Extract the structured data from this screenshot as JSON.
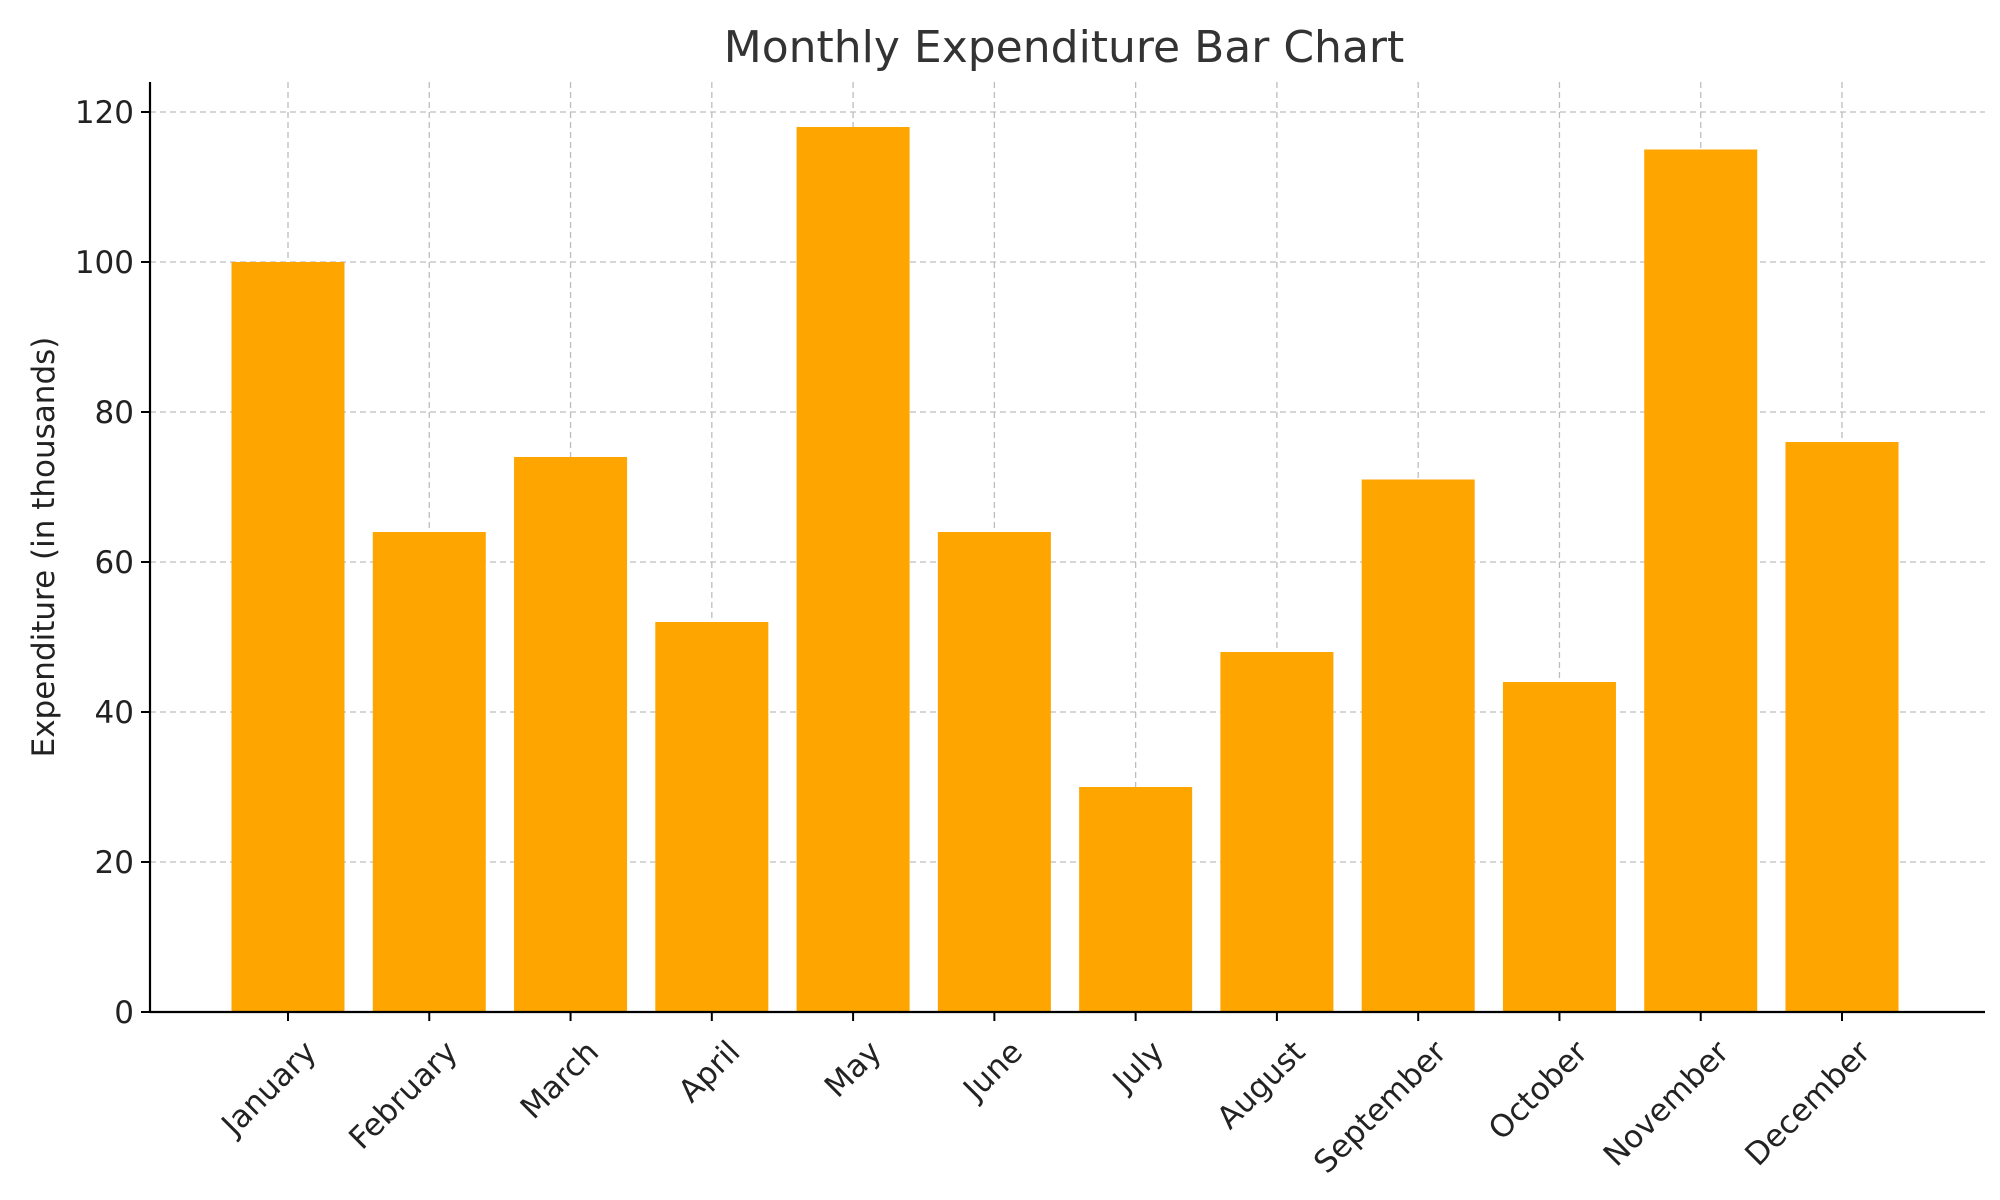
{
  "colors": {
    "bar": "#FFA500",
    "grid": "#BDBDBD",
    "axis": "#000000",
    "title": "#333333"
  },
  "chart_data": {
    "type": "bar",
    "title": "Monthly Expenditure Bar Chart",
    "xlabel": "",
    "ylabel": "Expenditure (in thousands)",
    "categories": [
      "January",
      "February",
      "March",
      "April",
      "May",
      "June",
      "July",
      "August",
      "September",
      "October",
      "November",
      "December"
    ],
    "values": [
      100,
      64,
      74,
      52,
      118,
      64,
      30,
      48,
      71,
      44,
      115,
      76
    ],
    "ylim": [
      0,
      124
    ],
    "yticks": [
      0,
      20,
      40,
      60,
      80,
      100,
      120
    ],
    "grid": true,
    "x_tick_rotation_deg": 45
  }
}
